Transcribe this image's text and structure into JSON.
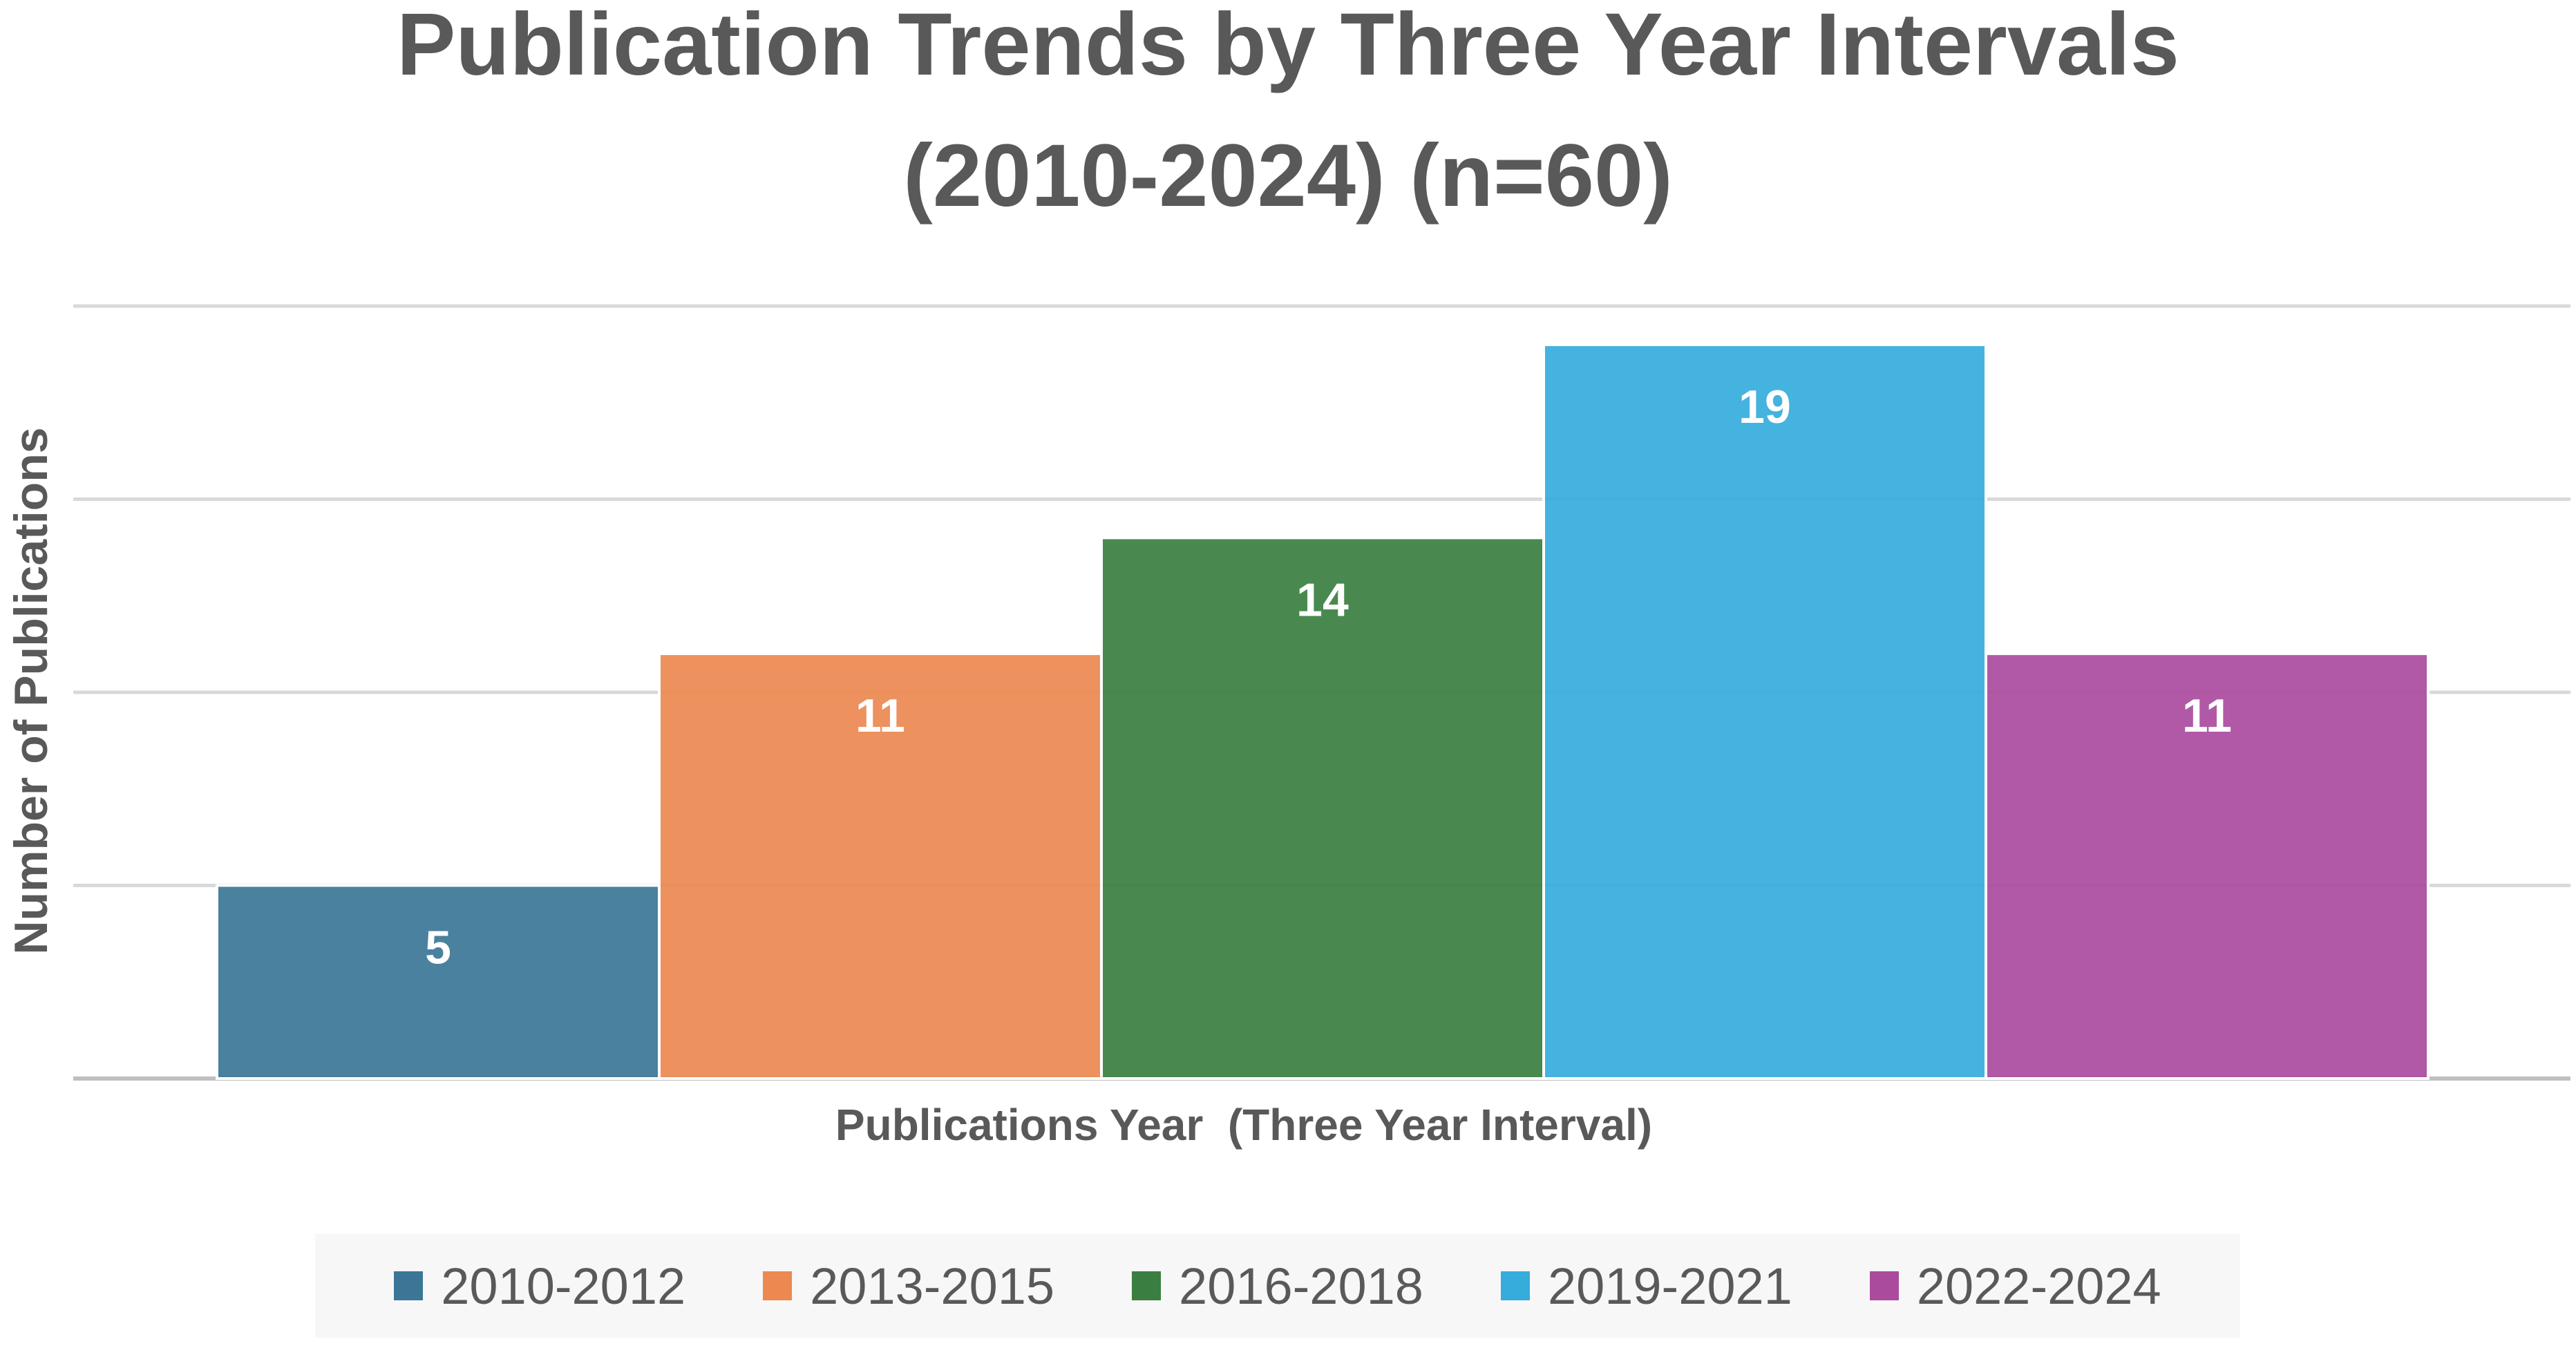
{
  "chart_data": {
    "type": "bar",
    "title": "Publication Trends by Three Year Intervals (2010-2024) (n=60)",
    "title_lines": [
      "Publication Trends by Three Year Intervals",
      "(2010-2024) (n=60)"
    ],
    "xlabel": "Publications Year  (Three Year Interval)",
    "ylabel": "Number of Publications",
    "categories": [
      "2010-2012",
      "2013-2015",
      "2016-2018",
      "2019-2021",
      "2022-2024"
    ],
    "values": [
      5,
      11,
      14,
      19,
      11
    ],
    "colors": [
      "#3b7697",
      "#ec8850",
      "#3a7f41",
      "#35acdc",
      "#aa4b9e"
    ],
    "ylim": [
      0,
      20
    ],
    "gridlines": [
      0,
      5,
      10,
      15,
      20
    ],
    "y_tick_labels_shown": false,
    "data_labels": true,
    "grid": true,
    "legend_position": "bottom",
    "legend": [
      "2010-2012",
      "2013-2015",
      "2016-2018",
      "2019-2021",
      "2022-2024"
    ]
  }
}
